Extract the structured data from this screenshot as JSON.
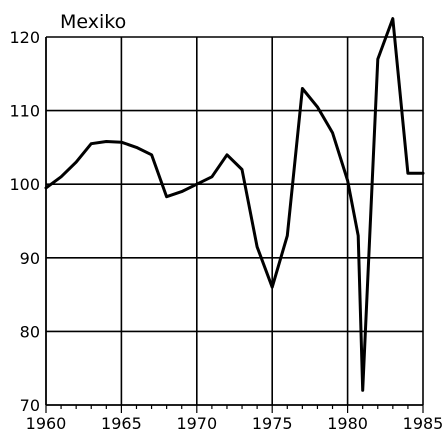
{
  "chart_data": {
    "type": "line",
    "title": "Mexiko",
    "xlabel": "",
    "ylabel": "",
    "xlim": [
      1960,
      1985
    ],
    "ylim": [
      70,
      120
    ],
    "x_ticks": [
      1960,
      1965,
      1970,
      1975,
      1980,
      1985
    ],
    "x_tick_labels": [
      "1960",
      "1965",
      "1970",
      "1975",
      "1980",
      "1985"
    ],
    "y_ticks": [
      70,
      80,
      90,
      100,
      110,
      120
    ],
    "y_tick_labels": [
      "70",
      "80",
      "90",
      "100",
      "110",
      "120"
    ],
    "grid": true,
    "legend": "none",
    "series": [
      {
        "x": [
          1960,
          1961,
          1962,
          1963,
          1964,
          1965,
          1966,
          1967,
          1968,
          1969,
          1970,
          1971,
          1972,
          1973,
          1974,
          1975,
          1976,
          1977,
          1978,
          1979,
          1980,
          1980.7,
          1981,
          1982,
          1983,
          1984,
          1985
        ],
        "values": [
          99.5,
          101,
          103,
          105.5,
          105.8,
          105.7,
          105,
          104,
          98.3,
          99,
          100,
          101,
          104,
          102,
          91.5,
          86,
          93,
          113,
          110.5,
          107,
          100.5,
          93,
          72,
          117,
          122.5,
          101.5,
          101.5
        ],
        "color": "#000000"
      }
    ]
  }
}
